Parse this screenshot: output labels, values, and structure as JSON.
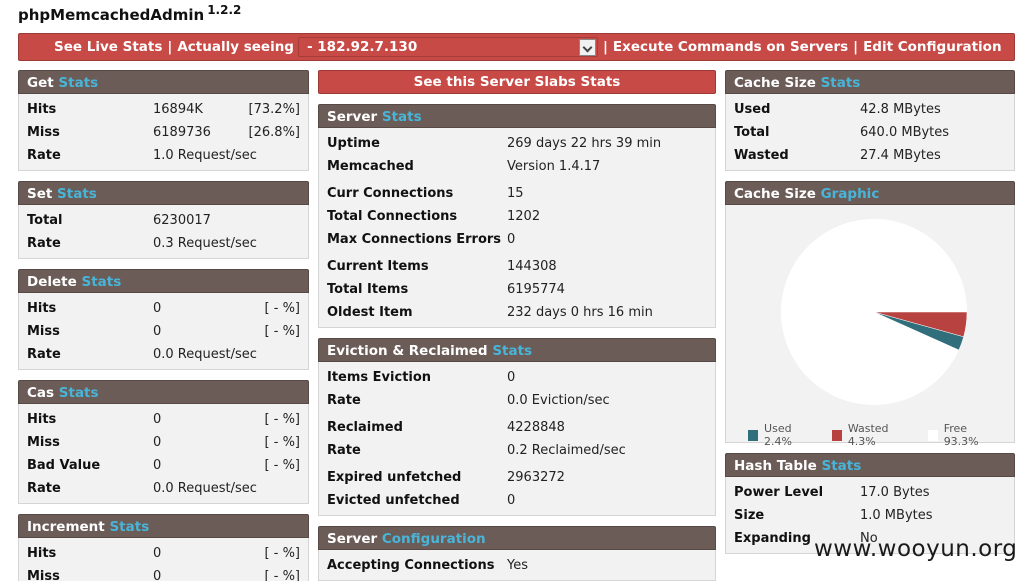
{
  "app": {
    "title": "phpMemcachedAdmin",
    "version": "1.2.2"
  },
  "topbar": {
    "live_stats": "See Live Stats",
    "seeing_label": "Actually seeing",
    "server_selected": "- 182.92.7.130",
    "execute": "Execute Commands on Servers",
    "edit_config": "Edit Configuration",
    "separator": "|"
  },
  "left": {
    "get": {
      "title": "Get",
      "sub": "Stats",
      "rows": [
        {
          "k": "Hits",
          "v": "16894K",
          "p": "[73.2%]"
        },
        {
          "k": "Miss",
          "v": "6189736",
          "p": "[26.8%]"
        },
        {
          "k": "Rate",
          "v": "1.0 Request/sec",
          "p": ""
        }
      ]
    },
    "set": {
      "title": "Set",
      "sub": "Stats",
      "rows": [
        {
          "k": "Total",
          "v": "6230017",
          "p": ""
        },
        {
          "k": "Rate",
          "v": "0.3 Request/sec",
          "p": ""
        }
      ]
    },
    "delete": {
      "title": "Delete",
      "sub": "Stats",
      "rows": [
        {
          "k": "Hits",
          "v": "0",
          "p": "[ - %]"
        },
        {
          "k": "Miss",
          "v": "0",
          "p": "[ - %]"
        },
        {
          "k": "Rate",
          "v": "0.0 Request/sec",
          "p": ""
        }
      ]
    },
    "cas": {
      "title": "Cas",
      "sub": "Stats",
      "rows": [
        {
          "k": "Hits",
          "v": "0",
          "p": "[ - %]"
        },
        {
          "k": "Miss",
          "v": "0",
          "p": "[ - %]"
        },
        {
          "k": "Bad Value",
          "v": "0",
          "p": "[ - %]"
        },
        {
          "k": "Rate",
          "v": "0.0 Request/sec",
          "p": ""
        }
      ]
    },
    "increment": {
      "title": "Increment",
      "sub": "Stats",
      "rows": [
        {
          "k": "Hits",
          "v": "0",
          "p": "[ - %]"
        },
        {
          "k": "Miss",
          "v": "0",
          "p": "[ - %]"
        }
      ]
    }
  },
  "middle": {
    "slabs_button": "See this Server Slabs Stats",
    "server": {
      "title": "Server",
      "sub": "Stats",
      "groups": [
        [
          {
            "k": "Uptime",
            "v": "269 days 22 hrs 39 min"
          },
          {
            "k": "Memcached",
            "v": "Version 1.4.17"
          }
        ],
        [
          {
            "k": "Curr Connections",
            "v": "15"
          },
          {
            "k": "Total Connections",
            "v": "1202"
          },
          {
            "k": "Max Connections Errors",
            "v": "0"
          }
        ],
        [
          {
            "k": "Current Items",
            "v": "144308"
          },
          {
            "k": "Total Items",
            "v": "6195774"
          },
          {
            "k": "Oldest Item",
            "v": "232 days 0 hrs 16 min"
          }
        ]
      ]
    },
    "eviction": {
      "title": "Eviction & Reclaimed",
      "sub": "Stats",
      "groups": [
        [
          {
            "k": "Items Eviction",
            "v": "0"
          },
          {
            "k": "Rate",
            "v": "0.0 Eviction/sec"
          }
        ],
        [
          {
            "k": "Reclaimed",
            "v": "4228848"
          },
          {
            "k": "Rate",
            "v": "0.2 Reclaimed/sec"
          }
        ],
        [
          {
            "k": "Expired unfetched",
            "v": "2963272"
          },
          {
            "k": "Evicted unfetched",
            "v": "0"
          }
        ]
      ]
    },
    "config": {
      "title": "Server",
      "sub": "Configuration",
      "rows": [
        {
          "k": "Accepting Connections",
          "v": "Yes"
        }
      ]
    }
  },
  "right": {
    "cache_size": {
      "title": "Cache Size",
      "sub": "Stats",
      "rows": [
        {
          "k": "Used",
          "v": "42.8 MBytes"
        },
        {
          "k": "Total",
          "v": "640.0 MBytes"
        },
        {
          "k": "Wasted",
          "v": "27.4 MBytes"
        }
      ]
    },
    "graphic": {
      "title": "Cache Size",
      "sub": "Graphic"
    },
    "hash": {
      "title": "Hash Table",
      "sub": "Stats",
      "rows": [
        {
          "k": "Power Level",
          "v": "17.0 Bytes"
        },
        {
          "k": "Size",
          "v": "1.0 MBytes"
        },
        {
          "k": "Expanding",
          "v": "No"
        }
      ]
    }
  },
  "chart_data": {
    "type": "pie",
    "categories": [
      "Used",
      "Wasted",
      "Free"
    ],
    "values": [
      2.4,
      4.3,
      93.3
    ],
    "labels": [
      "Used 2.4%",
      "Wasted 4.3%",
      "Free 93.3%"
    ],
    "colors": [
      "#2f6e7a",
      "#b8423f",
      "#ffffff"
    ],
    "legend": "bottom"
  },
  "watermark": "www.wooyun.org"
}
